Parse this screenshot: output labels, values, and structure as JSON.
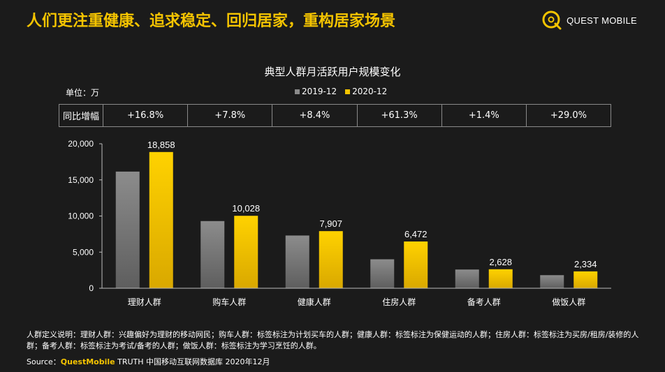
{
  "headline": "人们更注重健康、追求稳定、回归居家，重构居家场景",
  "brand": {
    "name": "QUEST MOBILE"
  },
  "chart_data": {
    "type": "bar",
    "title": "典型人群月活跃用户规模变化",
    "unit_label": "单位：万",
    "categories": [
      "理财人群",
      "购车人群",
      "健康人群",
      "住房人群",
      "备考人群",
      "做饭人群"
    ],
    "series": [
      {
        "name": "2019-12",
        "color": "#8a8a8a",
        "values": [
          16150,
          9300,
          7300,
          4010,
          2590,
          1810
        ]
      },
      {
        "name": "2020-12",
        "color": "#f5c400",
        "values": [
          18858,
          10028,
          7907,
          6472,
          2628,
          2334
        ],
        "labels": [
          "18,858",
          "10,028",
          "7,907",
          "6,472",
          "2,628",
          "2,334"
        ]
      }
    ],
    "ylim": [
      0,
      20000
    ],
    "yticks": [
      "0",
      "5,000",
      "10,000",
      "15,000",
      "20,000"
    ],
    "grid": false,
    "legend": "top-center"
  },
  "yoy": {
    "label": "同比增幅",
    "values": [
      "+16.8%",
      "+7.8%",
      "+8.4%",
      "+61.3%",
      "+1.4%",
      "+29.0%"
    ]
  },
  "footnote": "人群定义说明：理财人群：兴趣偏好为理财的移动网民；购车人群：标签标注为计划买车的人群；健康人群：标签标注为保健运动的人群；住房人群：标签标注为买房/租房/装修的人群；备考人群：标签标注为考试/备考的人群；做饭人群：标签标注为学习烹饪的人群。",
  "source": {
    "prefix": "Source：",
    "brand": "QuestMobile",
    "rest": " TRUTH 中国移动互联网数据库 2020年12月"
  }
}
